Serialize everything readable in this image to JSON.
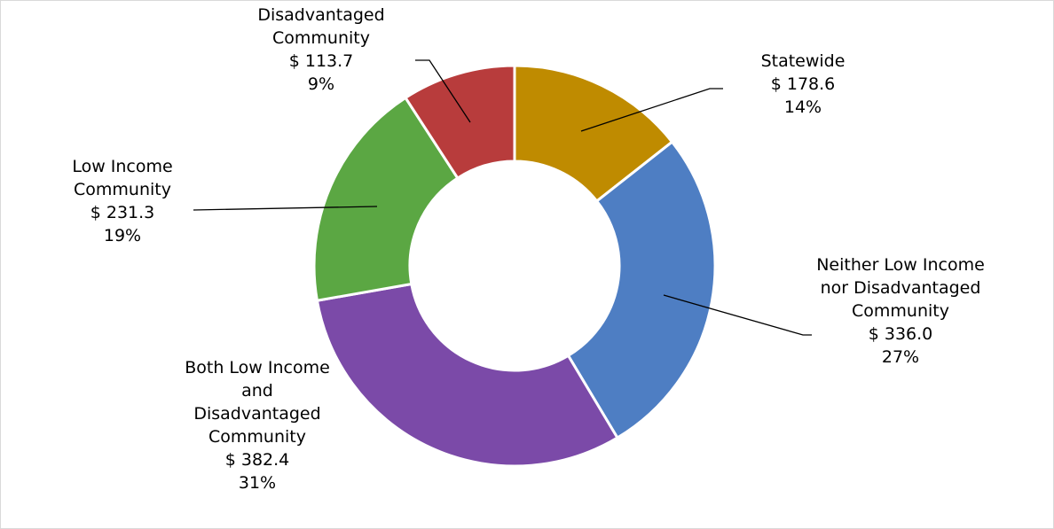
{
  "chart_data": {
    "type": "donut",
    "categories": [
      "Statewide",
      "Neither Low Income nor Disadvantaged Community",
      "Both Low Income and Disadvantaged Community",
      "Low Income Community",
      "Disadvantaged Community"
    ],
    "values": [
      178.6,
      336.0,
      382.4,
      231.3,
      113.7
    ],
    "value_labels": [
      "$ 178.6",
      "$ 336.0",
      "$ 382.4",
      "$ 231.3",
      "$ 113.7"
    ],
    "percent_labels": [
      "14%",
      "27%",
      "31%",
      "19%",
      "9%"
    ],
    "colors": [
      "#bf8b00",
      "#4e7ec3",
      "#7b4aa8",
      "#5ba743",
      "#b83c3c"
    ]
  }
}
